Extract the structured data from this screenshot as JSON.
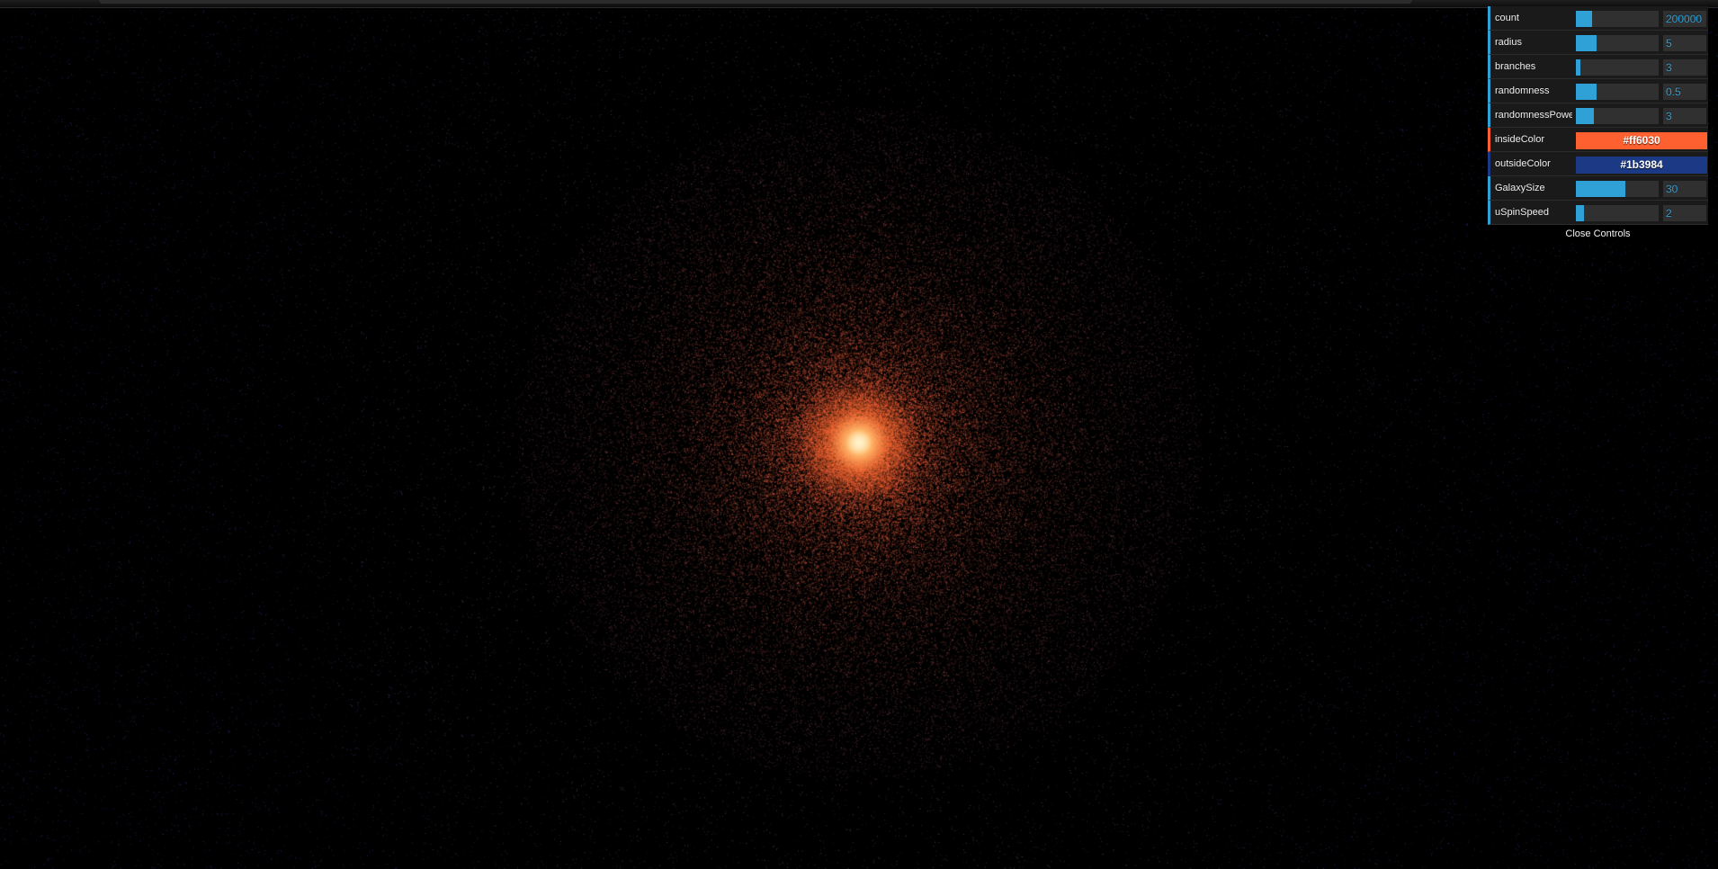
{
  "gui": {
    "controllers": [
      {
        "key": "count",
        "label": "count",
        "type": "number",
        "value": "200000",
        "fill_fraction": 0.2
      },
      {
        "key": "radius",
        "label": "radius",
        "type": "number",
        "value": "5",
        "fill_fraction": 0.25
      },
      {
        "key": "branches",
        "label": "branches",
        "type": "number",
        "value": "3",
        "fill_fraction": 0.05
      },
      {
        "key": "randomness",
        "label": "randomness",
        "type": "number",
        "value": "0.5",
        "fill_fraction": 0.25
      },
      {
        "key": "randomnessPower",
        "label": "randomnessPower",
        "type": "number",
        "value": "3",
        "fill_fraction": 0.22
      },
      {
        "key": "insideColor",
        "label": "insideColor",
        "type": "color",
        "value": "#ff6030",
        "swatch": "#ff6030"
      },
      {
        "key": "outsideColor",
        "label": "outsideColor",
        "type": "color",
        "value": "#1b3984",
        "swatch": "#1b3984"
      },
      {
        "key": "GalaxySize",
        "label": "GalaxySize",
        "type": "number",
        "value": "30",
        "fill_fraction": 0.6
      },
      {
        "key": "uSpinSpeed",
        "label": "uSpinSpeed",
        "type": "number",
        "value": "2",
        "fill_fraction": 0.1
      }
    ],
    "close_label": "Close Controls"
  },
  "colors": {
    "accent": "#2fa1d6",
    "inside": "#ff6030",
    "outside": "#1b3984",
    "core": "#fff2c8",
    "background": "#000000"
  }
}
